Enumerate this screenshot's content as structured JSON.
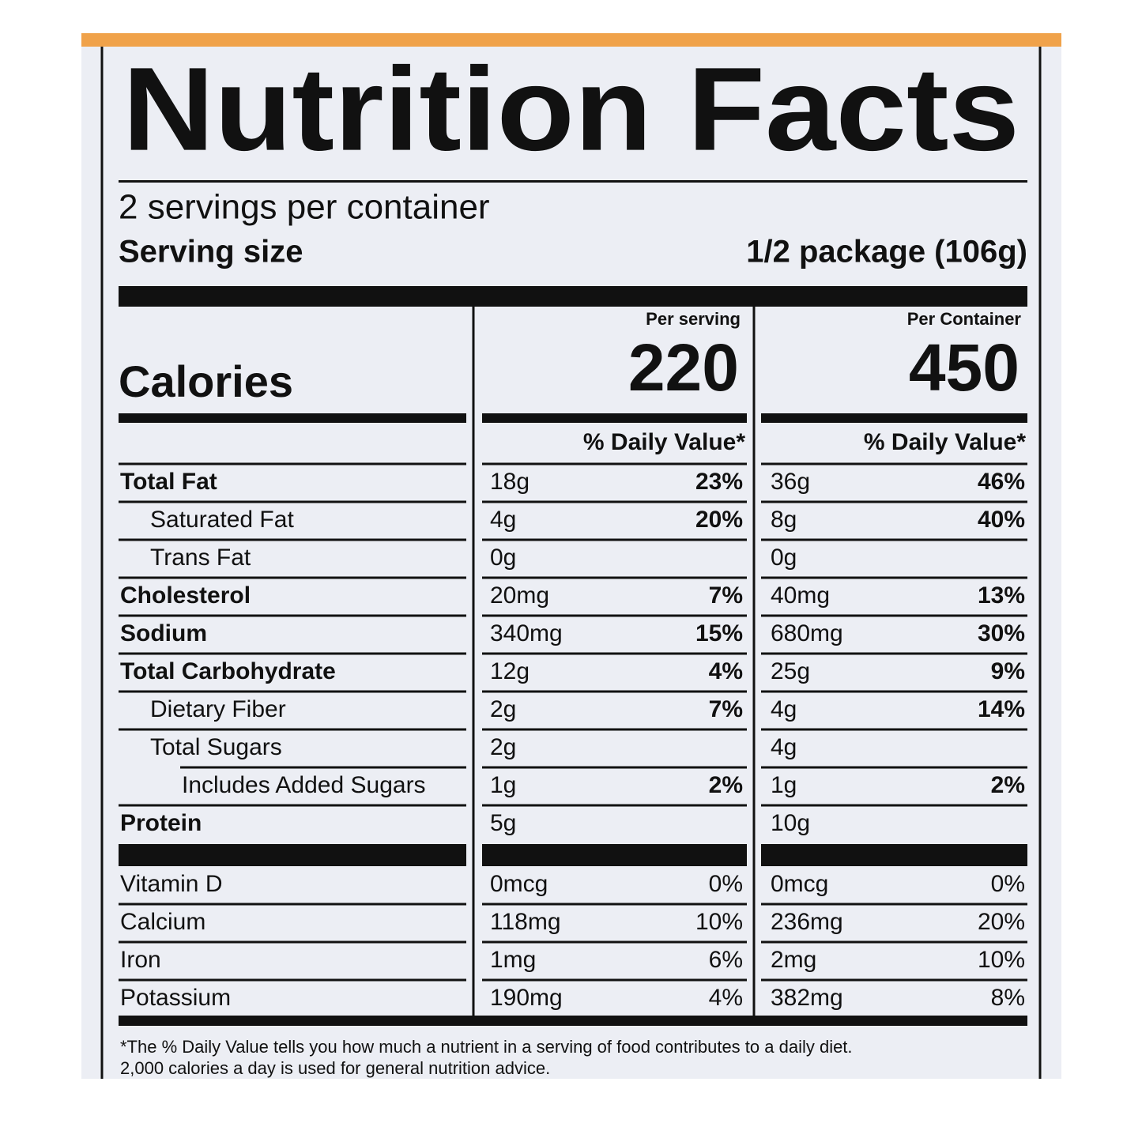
{
  "header": {
    "title": "Nutrition Facts",
    "servings": "2 servings per container",
    "serving_size_label": "Serving size",
    "serving_size": "1/2 package (106g)"
  },
  "calories": {
    "label": "Calories",
    "per_serving_label": "Per serving",
    "per_serving": 220,
    "per_container_label": "Per Container",
    "per_container": 450
  },
  "daily_value_heading": "% Daily Value*",
  "nutrients": [
    {
      "name": "Total Fat",
      "indent": 0,
      "serving": {
        "amount": "18g",
        "dv": "23%"
      },
      "container": {
        "amount": "36g",
        "dv": "46%"
      }
    },
    {
      "name": "Saturated Fat",
      "indent": 1,
      "serving": {
        "amount": "4g",
        "dv": "20%"
      },
      "container": {
        "amount": "8g",
        "dv": "40%"
      }
    },
    {
      "name": "Trans Fat",
      "indent": 1,
      "serving": {
        "amount": "0g",
        "dv": null
      },
      "container": {
        "amount": "0g",
        "dv": null
      }
    },
    {
      "name": "Cholesterol",
      "indent": 0,
      "serving": {
        "amount": "20mg",
        "dv": "7%"
      },
      "container": {
        "amount": "40mg",
        "dv": "13%"
      }
    },
    {
      "name": "Sodium",
      "indent": 0,
      "serving": {
        "amount": "340mg",
        "dv": "15%"
      },
      "container": {
        "amount": "680mg",
        "dv": "30%"
      }
    },
    {
      "name": "Total Carbohydrate",
      "indent": 0,
      "serving": {
        "amount": "12g",
        "dv": "4%"
      },
      "container": {
        "amount": "25g",
        "dv": "9%"
      }
    },
    {
      "name": "Dietary Fiber",
      "indent": 1,
      "serving": {
        "amount": "2g",
        "dv": "7%"
      },
      "container": {
        "amount": "4g",
        "dv": "14%"
      }
    },
    {
      "name": "Total Sugars",
      "indent": 1,
      "serving": {
        "amount": "2g",
        "dv": null
      },
      "container": {
        "amount": "4g",
        "dv": null
      }
    },
    {
      "name": "Includes Added Sugars",
      "indent": 2,
      "serving": {
        "amount": "1g",
        "dv": "2%"
      },
      "container": {
        "amount": "1g",
        "dv": "2%"
      }
    },
    {
      "name": "Protein",
      "indent": 0,
      "serving": {
        "amount": "5g",
        "dv": null
      },
      "container": {
        "amount": "10g",
        "dv": null
      }
    }
  ],
  "vitamins": [
    {
      "name": "Vitamin D",
      "serving": {
        "amount": "0mcg",
        "dv": "0%"
      },
      "container": {
        "amount": "0mcg",
        "dv": "0%"
      }
    },
    {
      "name": "Calcium",
      "serving": {
        "amount": "118mg",
        "dv": "10%"
      },
      "container": {
        "amount": "236mg",
        "dv": "20%"
      }
    },
    {
      "name": "Iron",
      "serving": {
        "amount": "1mg",
        "dv": "6%"
      },
      "container": {
        "amount": "2mg",
        "dv": "10%"
      }
    },
    {
      "name": "Potassium",
      "serving": {
        "amount": "190mg",
        "dv": "4%"
      },
      "container": {
        "amount": "382mg",
        "dv": "8%"
      }
    }
  ],
  "footnote": [
    "*The % Daily Value tells you how much a nutrient in a serving of food contributes to a daily diet.",
    "2,000 calories a day is used for general nutrition advice."
  ]
}
